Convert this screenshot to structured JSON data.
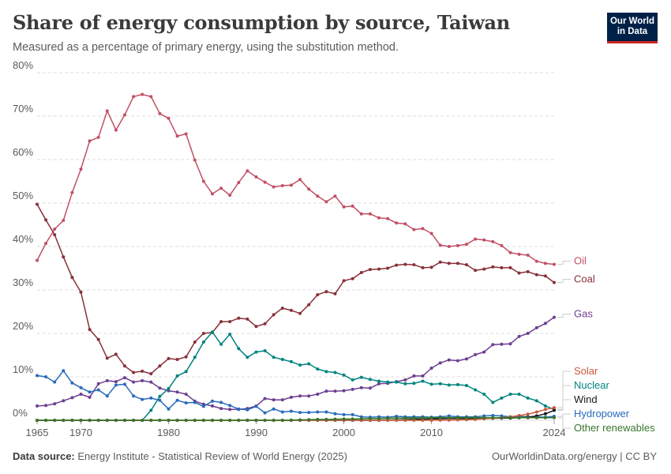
{
  "header": {
    "title": "Share of energy consumption by source, Taiwan",
    "subtitle": "Measured as a percentage of primary energy, using the substitution method.",
    "logo_line1": "Our World",
    "logo_line2": "in Data"
  },
  "footer": {
    "source_label": "Data source:",
    "source_text": "Energy Institute - Statistical Review of World Energy (2025)",
    "right_text": "OurWorldinData.org/energy | CC BY"
  },
  "chart_data": {
    "type": "line",
    "title": "Share of energy consumption by source, Taiwan",
    "subtitle": "Measured as a percentage of primary energy, using the substitution method.",
    "xlabel": "",
    "ylabel": "",
    "xlim": [
      1965,
      2024
    ],
    "ylim": [
      0,
      80
    ],
    "x_ticks": [
      {
        "value": 1965,
        "label": "1965"
      },
      {
        "value": 1970,
        "label": "1970"
      },
      {
        "value": 1980,
        "label": "1980"
      },
      {
        "value": 1990,
        "label": "1990"
      },
      {
        "value": 2000,
        "label": "2000"
      },
      {
        "value": 2010,
        "label": "2010"
      },
      {
        "value": 2024,
        "label": "2024"
      }
    ],
    "y_ticks": [
      {
        "value": 0,
        "label": "0%"
      },
      {
        "value": 10,
        "label": "10%"
      },
      {
        "value": 20,
        "label": "20%"
      },
      {
        "value": 30,
        "label": "30%"
      },
      {
        "value": 40,
        "label": "40%"
      },
      {
        "value": 50,
        "label": "50%"
      },
      {
        "value": 60,
        "label": "60%"
      },
      {
        "value": 70,
        "label": "70%"
      },
      {
        "value": 80,
        "label": "80%"
      }
    ],
    "grid": true,
    "legend": "right (end labels)",
    "x_start": 1965,
    "series": [
      {
        "name": "Oil",
        "color": "#c15065",
        "values": [
          36.8,
          40.7,
          44.0,
          46.0,
          52.4,
          57.8,
          64.3,
          65.1,
          71.2,
          66.8,
          70.3,
          74.5,
          75.0,
          74.5,
          70.6,
          69.5,
          65.4,
          65.9,
          59.9,
          55.0,
          52.1,
          53.4,
          51.8,
          54.7,
          57.4,
          56.0,
          54.8,
          53.7,
          54.0,
          54.1,
          55.4,
          53.2,
          51.6,
          50.3,
          51.6,
          49.1,
          49.3,
          47.5,
          47.5,
          46.6,
          46.4,
          45.4,
          45.2,
          43.9,
          44.1,
          43.0,
          40.3,
          40.0,
          40.2,
          40.5,
          41.7,
          41.5,
          41.1,
          40.2,
          38.6,
          38.2,
          38.0,
          36.6,
          36.1,
          35.9
        ]
      },
      {
        "name": "Coal",
        "color": "#883039",
        "values": [
          49.7,
          46.1,
          42.7,
          37.6,
          32.9,
          29.5,
          20.9,
          18.6,
          14.3,
          15.2,
          12.5,
          11.0,
          11.3,
          10.7,
          12.5,
          14.2,
          14.0,
          14.6,
          18.0,
          20.0,
          20.2,
          22.7,
          22.7,
          23.5,
          23.3,
          21.6,
          22.2,
          24.3,
          25.8,
          25.3,
          24.6,
          26.6,
          28.9,
          29.6,
          29.1,
          32.1,
          32.6,
          34.0,
          34.7,
          34.8,
          35.0,
          35.7,
          35.9,
          35.8,
          35.1,
          35.2,
          36.4,
          36.1,
          36.1,
          35.8,
          34.5,
          34.8,
          35.3,
          35.1,
          35.1,
          33.9,
          34.2,
          33.5,
          33.2,
          31.7
        ]
      },
      {
        "name": "Gas",
        "color": "#6d3e91",
        "values": [
          3.3,
          3.4,
          3.8,
          4.5,
          5.2,
          6.0,
          5.3,
          8.4,
          9.1,
          8.9,
          9.8,
          8.8,
          9.1,
          8.8,
          7.4,
          6.8,
          6.5,
          6.0,
          4.4,
          3.7,
          3.3,
          2.7,
          2.5,
          2.5,
          2.7,
          3.3,
          5.0,
          4.7,
          4.7,
          5.3,
          5.6,
          5.6,
          6.0,
          6.7,
          6.7,
          6.8,
          7.1,
          7.5,
          7.4,
          8.4,
          8.5,
          8.9,
          9.3,
          10.2,
          10.2,
          12.0,
          13.2,
          13.9,
          13.7,
          14.1,
          15.1,
          15.7,
          17.4,
          17.5,
          17.6,
          19.3,
          20.0,
          21.3,
          22.3,
          23.7
        ]
      },
      {
        "name": "Nuclear",
        "color": "#00847e",
        "values": [
          0,
          0,
          0,
          0,
          0,
          0,
          0,
          0,
          0,
          0,
          0,
          0,
          0,
          2.3,
          5.5,
          7.3,
          10.2,
          11.2,
          14.5,
          18.0,
          20.3,
          17.5,
          19.8,
          16.5,
          14.5,
          15.7,
          16.0,
          14.5,
          14.0,
          13.5,
          12.7,
          13.0,
          11.8,
          11.2,
          11.0,
          10.4,
          9.3,
          9.9,
          9.4,
          9.0,
          8.8,
          8.8,
          8.4,
          8.5,
          9.0,
          8.3,
          8.4,
          8.1,
          8.2,
          8.0,
          7.0,
          6.0,
          4.1,
          5.1,
          6.0,
          6.0,
          5.1,
          4.5,
          3.3,
          2.5
        ]
      },
      {
        "name": "Hydropower",
        "color": "#286bbb",
        "values": [
          10.3,
          10.0,
          8.8,
          11.4,
          8.6,
          7.5,
          6.5,
          7.0,
          5.6,
          8.1,
          8.3,
          5.6,
          4.8,
          5.1,
          4.6,
          2.6,
          4.6,
          4.0,
          4.1,
          3.2,
          4.4,
          4.1,
          3.4,
          2.6,
          2.4,
          3.2,
          1.7,
          2.6,
          1.9,
          2.1,
          1.8,
          1.8,
          1.9,
          1.9,
          1.5,
          1.3,
          1.3,
          0.8,
          0.7,
          0.8,
          0.7,
          0.9,
          0.8,
          0.8,
          0.8,
          0.7,
          0.8,
          1.0,
          0.8,
          0.8,
          0.8,
          1.0,
          1.1,
          1.0,
          0.8,
          0.9,
          0.8,
          0.8,
          0.7,
          0.9
        ]
      },
      {
        "name": "Wind",
        "color": "#18191d",
        "values": [
          0,
          0,
          0,
          0,
          0,
          0,
          0,
          0,
          0,
          0,
          0,
          0,
          0,
          0,
          0,
          0,
          0,
          0,
          0,
          0,
          0,
          0,
          0,
          0,
          0,
          0,
          0,
          0,
          0,
          0,
          0,
          0,
          0,
          0,
          0,
          0,
          0,
          0,
          0,
          0.02,
          0.05,
          0.1,
          0.15,
          0.2,
          0.25,
          0.3,
          0.35,
          0.4,
          0.4,
          0.4,
          0.4,
          0.4,
          0.45,
          0.5,
          0.5,
          0.6,
          0.7,
          1.0,
          1.5,
          2.3
        ]
      },
      {
        "name": "Solar",
        "color": "#ca5a3f",
        "values": [
          0,
          0,
          0,
          0,
          0,
          0,
          0,
          0,
          0,
          0,
          0,
          0,
          0,
          0,
          0,
          0,
          0,
          0,
          0,
          0,
          0,
          0,
          0,
          0,
          0,
          0,
          0,
          0,
          0,
          0,
          0,
          0,
          0,
          0,
          0,
          0,
          0,
          0,
          0,
          0,
          0,
          0,
          0,
          0,
          0,
          0,
          0.02,
          0.05,
          0.1,
          0.15,
          0.2,
          0.35,
          0.45,
          0.6,
          0.8,
          1.1,
          1.4,
          1.9,
          2.5,
          2.9
        ]
      },
      {
        "name": "Other renewables",
        "color": "#38762b",
        "values": [
          0,
          0,
          0,
          0,
          0,
          0,
          0,
          0,
          0,
          0,
          0,
          0,
          0,
          0,
          0,
          0,
          0,
          0,
          0,
          0,
          0,
          0,
          0,
          0,
          0,
          0,
          0,
          0,
          0,
          0.05,
          0.1,
          0.15,
          0.2,
          0.2,
          0.25,
          0.3,
          0.3,
          0.35,
          0.4,
          0.4,
          0.45,
          0.5,
          0.5,
          0.5,
          0.55,
          0.6,
          0.6,
          0.6,
          0.6,
          0.6,
          0.6,
          0.6,
          0.6,
          0.6,
          0.6,
          0.6,
          0.6,
          0.6,
          0.6,
          0.6
        ]
      }
    ]
  }
}
